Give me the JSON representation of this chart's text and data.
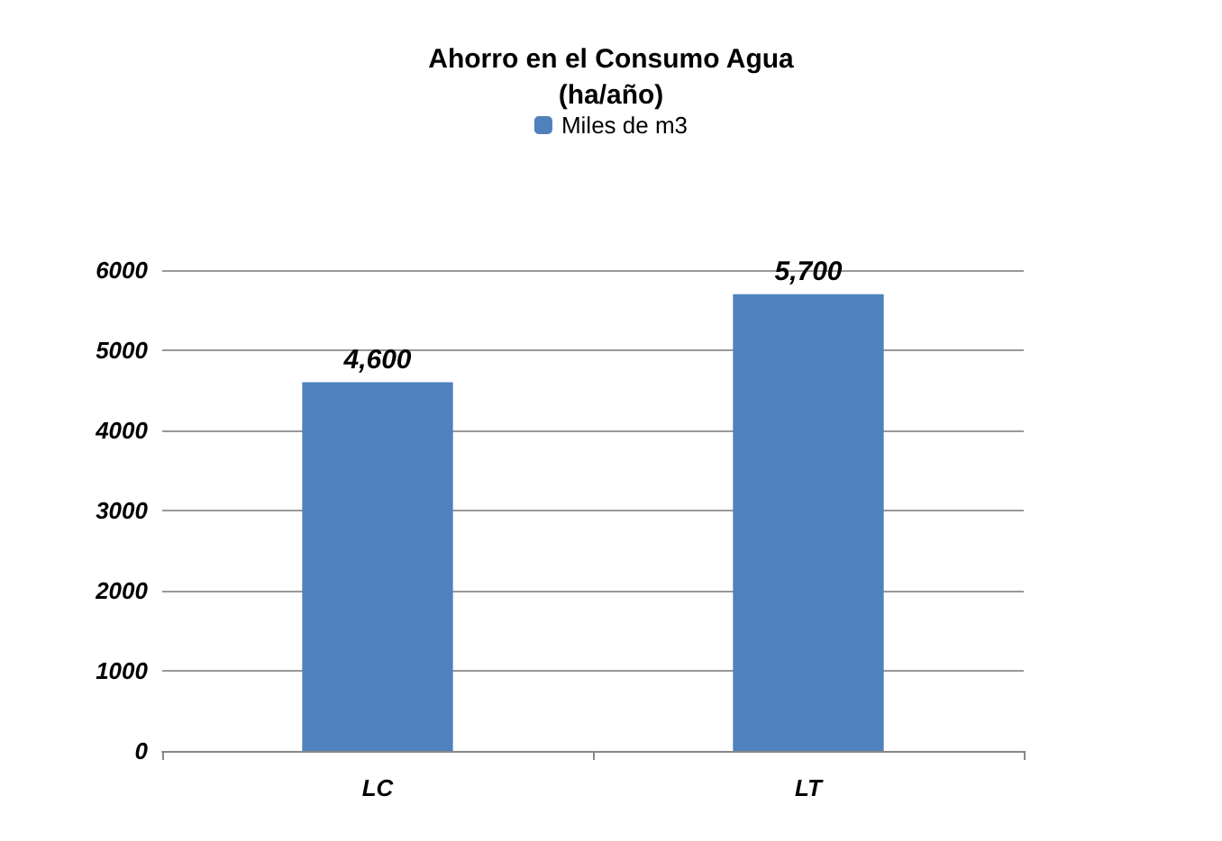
{
  "chart_data": {
    "type": "bar",
    "title": "Ahorro en el Consumo Agua\n(ha/año)",
    "categories": [
      "LC",
      "LT"
    ],
    "series": [
      {
        "name": "Miles de m3",
        "color": "#4f81bd",
        "values": [
          4600,
          5700
        ],
        "value_labels": [
          "4,600",
          "5,700"
        ]
      }
    ],
    "ylim": [
      0,
      6000
    ],
    "yticks": [
      0,
      1000,
      2000,
      3000,
      4000,
      5000,
      6000
    ],
    "grid": "y",
    "legend": "top"
  }
}
